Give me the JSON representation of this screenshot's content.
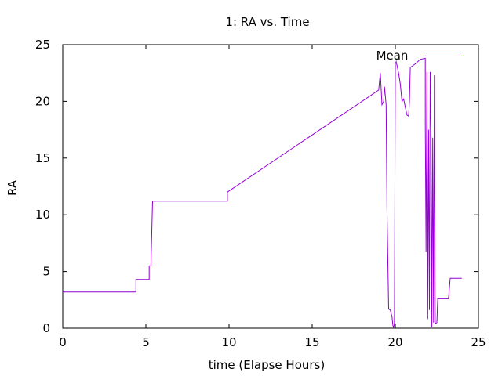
{
  "chart_data": {
    "type": "line",
    "title": "1: RA vs. Time",
    "xlabel": "time (Elapse Hours)",
    "ylabel": "RA",
    "xlim": [
      0,
      25
    ],
    "ylim": [
      0,
      25
    ],
    "xticks": [
      0,
      5,
      10,
      15,
      20,
      25
    ],
    "yticks": [
      0,
      5,
      10,
      15,
      20,
      25
    ],
    "grid": false,
    "legend_position": "top-right",
    "series": [
      {
        "name": "Mean",
        "color": "#9400d3",
        "points": [
          [
            0,
            3.2
          ],
          [
            4.4,
            3.2
          ],
          [
            4.4,
            4.3
          ],
          [
            5.2,
            4.3
          ],
          [
            5.2,
            5.5
          ],
          [
            5.3,
            5.5
          ],
          [
            5.4,
            11.2
          ],
          [
            9.9,
            11.2
          ],
          [
            9.9,
            12.0
          ],
          [
            10.0,
            12.1
          ],
          [
            18.5,
            20.5
          ],
          [
            19.0,
            21.0
          ],
          [
            19.1,
            22.5
          ],
          [
            19.2,
            19.7
          ],
          [
            19.3,
            20.0
          ],
          [
            19.35,
            21.3
          ],
          [
            19.45,
            19.7
          ],
          [
            19.5,
            10.5
          ],
          [
            19.6,
            1.7
          ],
          [
            19.7,
            1.6
          ],
          [
            19.8,
            1.0
          ],
          [
            19.85,
            0.3
          ],
          [
            19.9,
            0
          ],
          [
            19.95,
            0.5
          ],
          [
            20.0,
            23.3
          ],
          [
            20.05,
            23.5
          ],
          [
            20.2,
            22.5
          ],
          [
            20.3,
            21.5
          ],
          [
            20.4,
            20.0
          ],
          [
            20.5,
            20.2
          ],
          [
            20.6,
            19.5
          ],
          [
            20.7,
            18.8
          ],
          [
            20.8,
            18.7
          ],
          [
            20.85,
            20.0
          ],
          [
            20.9,
            23.0
          ],
          [
            21.2,
            23.3
          ],
          [
            21.5,
            23.7
          ],
          [
            21.8,
            23.8
          ],
          [
            21.8,
            18.0
          ],
          [
            21.85,
            6.7
          ],
          [
            21.9,
            22.6
          ],
          [
            21.95,
            0.8
          ],
          [
            22.0,
            17.5
          ],
          [
            22.05,
            1.6
          ],
          [
            22.1,
            22.6
          ],
          [
            22.15,
            17.0
          ],
          [
            22.2,
            0.1
          ],
          [
            22.25,
            16.8
          ],
          [
            22.3,
            0.5
          ],
          [
            22.35,
            22.3
          ],
          [
            22.4,
            0.4
          ],
          [
            22.5,
            0.5
          ],
          [
            22.55,
            2.6
          ],
          [
            23.2,
            2.6
          ],
          [
            23.3,
            4.4
          ],
          [
            24.0,
            4.4
          ]
        ]
      }
    ],
    "mean_label": "Mean",
    "mean_value": 24.0,
    "mean_range": [
      21.8,
      24.0
    ]
  }
}
